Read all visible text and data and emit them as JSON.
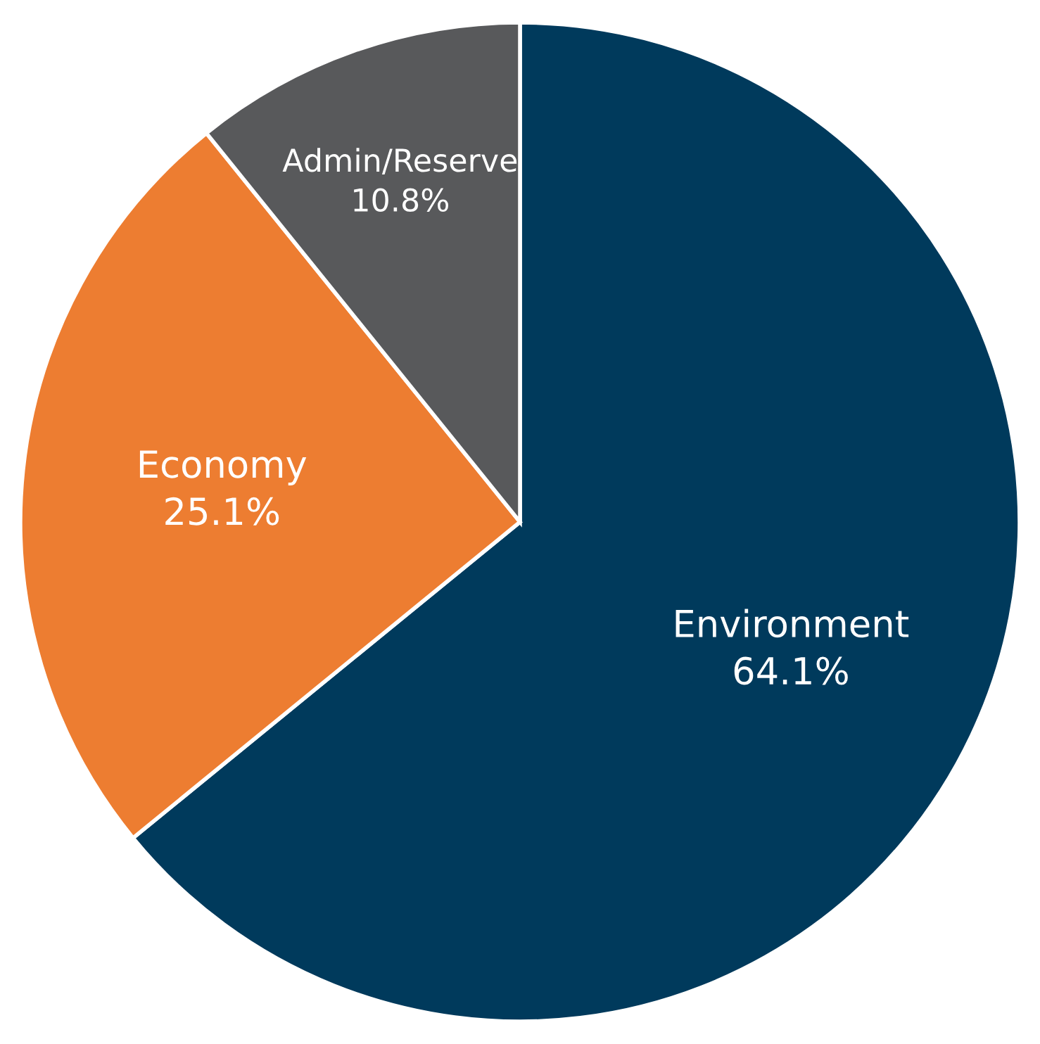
{
  "chart_data": {
    "type": "pie",
    "categories": [
      "Environment",
      "Economy",
      "Admin/Reserve"
    ],
    "values": [
      64.1,
      25.1,
      10.8
    ],
    "value_labels": [
      "64.1%",
      "25.1%",
      "10.8%"
    ],
    "colors": [
      "#003a5c",
      "#ed7d31",
      "#58595b"
    ]
  }
}
